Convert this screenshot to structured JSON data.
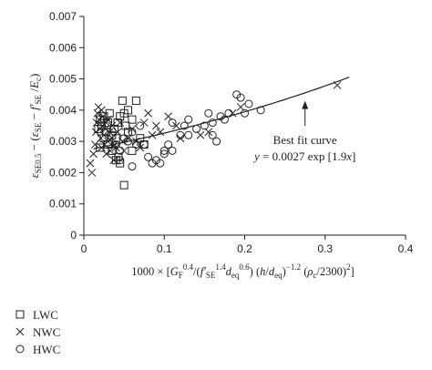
{
  "chart_data": {
    "type": "scatter",
    "xlabel_parts": [
      "1000 × [",
      "G",
      "F",
      "0.4",
      "/(",
      "f′",
      "SE",
      "1.4",
      "d",
      "eq",
      "0.6",
      ") (",
      "h",
      "/",
      "d",
      "eq",
      ")",
      "−1.2",
      " (",
      "ρ",
      "c",
      "/2300)",
      "2",
      "]"
    ],
    "ylabel_parts": [
      "ε",
      "SE0.5",
      " − (",
      "ε",
      "SE",
      " − ",
      "f′",
      "SE",
      " /",
      "E",
      "c",
      ")"
    ],
    "xlim": [
      0,
      0.4
    ],
    "ylim": [
      0,
      0.007
    ],
    "xticks": [
      0,
      0.1,
      0.2,
      0.3,
      0.4
    ],
    "xtick_labels": [
      "0",
      "0.1",
      "0.2",
      "0.3",
      "0.4"
    ],
    "yticks": [
      0,
      0.001,
      0.002,
      0.003,
      0.004,
      0.005,
      0.006,
      0.007
    ],
    "ytick_labels": [
      "0",
      "0.001",
      "0.002",
      "0.003",
      "0.004",
      "0.005",
      "0.006",
      "0.007"
    ],
    "fit": {
      "label": "Best fit curve",
      "equation_parts": [
        "y",
        " = 0.0027 exp [1.9",
        "x",
        "]"
      ],
      "a": 0.0027,
      "b": 1.9,
      "x_range": [
        0.012,
        0.33
      ],
      "arrow_from": [
        0.275,
        0.0035
      ],
      "arrow_to": [
        0.275,
        0.0043
      ]
    },
    "series": [
      {
        "name": "LWC",
        "marker": "square",
        "points": [
          [
            0.018,
            0.0034
          ],
          [
            0.02,
            0.0037
          ],
          [
            0.022,
            0.0035
          ],
          [
            0.025,
            0.0038
          ],
          [
            0.028,
            0.0033
          ],
          [
            0.03,
            0.0036
          ],
          [
            0.032,
            0.0039
          ],
          [
            0.035,
            0.0032
          ],
          [
            0.038,
            0.0034
          ],
          [
            0.04,
            0.0031
          ],
          [
            0.042,
            0.0036
          ],
          [
            0.045,
            0.0038
          ],
          [
            0.048,
            0.0043
          ],
          [
            0.05,
            0.0039
          ],
          [
            0.052,
            0.0035
          ],
          [
            0.055,
            0.004
          ],
          [
            0.06,
            0.0037
          ],
          [
            0.065,
            0.0043
          ],
          [
            0.07,
            0.0031
          ],
          [
            0.075,
            0.0029
          ],
          [
            0.04,
            0.0024
          ],
          [
            0.045,
            0.0023
          ],
          [
            0.05,
            0.0016
          ],
          [
            0.035,
            0.0027
          ],
          [
            0.03,
            0.0029
          ],
          [
            0.055,
            0.0033
          ],
          [
            0.06,
            0.0027
          ],
          [
            0.025,
            0.0031
          ],
          [
            0.02,
            0.0028
          ],
          [
            0.043,
            0.0025
          ]
        ]
      },
      {
        "name": "NWC",
        "marker": "x",
        "points": [
          [
            0.008,
            0.0023
          ],
          [
            0.01,
            0.002
          ],
          [
            0.012,
            0.0026
          ],
          [
            0.014,
            0.0029
          ],
          [
            0.015,
            0.0033
          ],
          [
            0.016,
            0.0036
          ],
          [
            0.017,
            0.0039
          ],
          [
            0.018,
            0.0041
          ],
          [
            0.019,
            0.0037
          ],
          [
            0.02,
            0.0034
          ],
          [
            0.021,
            0.0031
          ],
          [
            0.022,
            0.0028
          ],
          [
            0.023,
            0.0035
          ],
          [
            0.024,
            0.0038
          ],
          [
            0.025,
            0.0032
          ],
          [
            0.026,
            0.0029
          ],
          [
            0.027,
            0.0034
          ],
          [
            0.028,
            0.0036
          ],
          [
            0.03,
            0.003
          ],
          [
            0.032,
            0.0033
          ],
          [
            0.033,
            0.0027
          ],
          [
            0.035,
            0.0031
          ],
          [
            0.037,
            0.0024
          ],
          [
            0.04,
            0.0028
          ],
          [
            0.042,
            0.0033
          ],
          [
            0.045,
            0.0036
          ],
          [
            0.048,
            0.003
          ],
          [
            0.05,
            0.0027
          ],
          [
            0.055,
            0.0031
          ],
          [
            0.06,
            0.0034
          ],
          [
            0.065,
            0.003
          ],
          [
            0.07,
            0.0028
          ],
          [
            0.075,
            0.0036
          ],
          [
            0.08,
            0.0039
          ],
          [
            0.085,
            0.0032
          ],
          [
            0.09,
            0.0035
          ],
          [
            0.095,
            0.0033
          ],
          [
            0.105,
            0.0038
          ],
          [
            0.115,
            0.0035
          ],
          [
            0.12,
            0.0031
          ],
          [
            0.145,
            0.0032
          ],
          [
            0.155,
            0.0033
          ],
          [
            0.185,
            0.0039
          ],
          [
            0.195,
            0.0041
          ],
          [
            0.315,
            0.0048
          ],
          [
            0.03,
            0.0037
          ],
          [
            0.035,
            0.0035
          ],
          [
            0.022,
            0.004
          ],
          [
            0.028,
            0.0026
          ],
          [
            0.038,
            0.0029
          ]
        ]
      },
      {
        "name": "HWC",
        "marker": "circle",
        "points": [
          [
            0.04,
            0.0029
          ],
          [
            0.045,
            0.0027
          ],
          [
            0.05,
            0.0031
          ],
          [
            0.055,
            0.003
          ],
          [
            0.06,
            0.0033
          ],
          [
            0.065,
            0.0029
          ],
          [
            0.07,
            0.0035
          ],
          [
            0.075,
            0.0029
          ],
          [
            0.08,
            0.0025
          ],
          [
            0.085,
            0.0023
          ],
          [
            0.09,
            0.0024
          ],
          [
            0.095,
            0.0023
          ],
          [
            0.1,
            0.0027
          ],
          [
            0.105,
            0.0029
          ],
          [
            0.11,
            0.0036
          ],
          [
            0.12,
            0.0032
          ],
          [
            0.125,
            0.0035
          ],
          [
            0.13,
            0.0037
          ],
          [
            0.14,
            0.0034
          ],
          [
            0.15,
            0.0035
          ],
          [
            0.155,
            0.0039
          ],
          [
            0.16,
            0.0036
          ],
          [
            0.17,
            0.0038
          ],
          [
            0.18,
            0.0039
          ],
          [
            0.19,
            0.0045
          ],
          [
            0.195,
            0.0044
          ],
          [
            0.2,
            0.0039
          ],
          [
            0.205,
            0.0042
          ],
          [
            0.22,
            0.004
          ],
          [
            0.16,
            0.0032
          ],
          [
            0.175,
            0.0037
          ],
          [
            0.165,
            0.003
          ],
          [
            0.13,
            0.0032
          ],
          [
            0.11,
            0.0027
          ],
          [
            0.1,
            0.0026
          ],
          [
            0.06,
            0.0022
          ],
          [
            0.045,
            0.0024
          ]
        ]
      }
    ],
    "legend": {
      "placement": "below-left",
      "entries": [
        "LWC",
        "NWC",
        "HWC"
      ]
    }
  }
}
